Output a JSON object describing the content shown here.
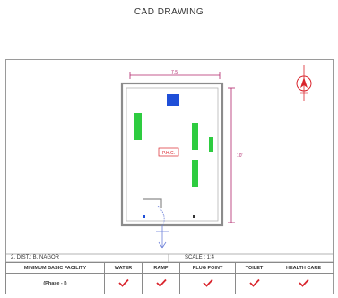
{
  "title": "CAD DRAWING",
  "plan": {
    "top_dimension": "7.5'",
    "side_dimension": "10'",
    "room_label": "P.H.C.",
    "scale_note": "SCALE : 1:4"
  },
  "info": {
    "left_text": "2. DIST.: B. NAGOR",
    "right_text": "SCALE : 1:4"
  },
  "facility_table": {
    "col_label": "MINIMUM BASIC FACILITY",
    "row_label": "(Phase - I)",
    "columns": [
      "WATER",
      "RAMP",
      "PLUG POINT",
      "TOILET",
      "HEALTH CARE"
    ]
  },
  "colors": {
    "green_block": "#2ecc40",
    "blue_block": "#1f4fd8",
    "tick": "#d9242c",
    "dimension": "#b0246a"
  }
}
